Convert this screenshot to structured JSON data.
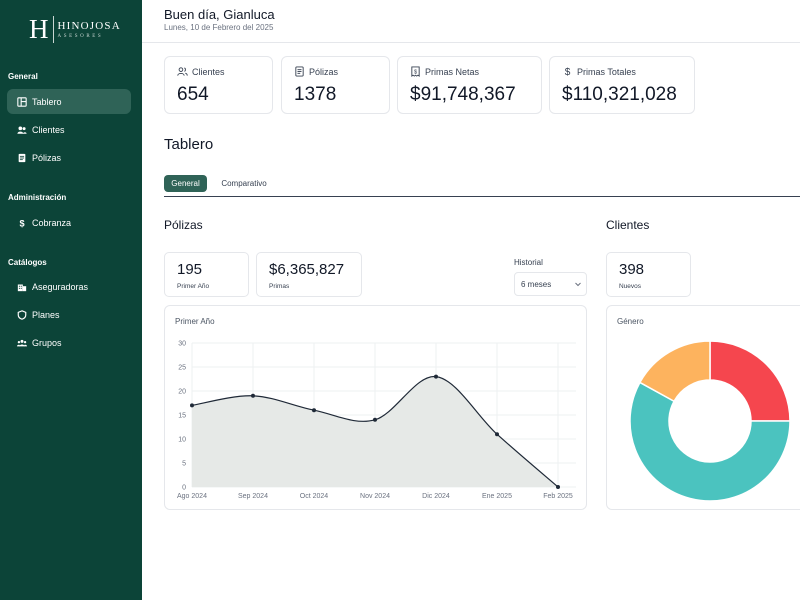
{
  "sidebar": {
    "logo_letter": "H",
    "logo_name": "HINOJOSA",
    "logo_sub": "ASESORES",
    "sections": [
      {
        "label": "General"
      },
      {
        "label": "Administración"
      },
      {
        "label": "Catálogos"
      }
    ],
    "items": [
      {
        "label": "Tablero",
        "icon": "dashboard-icon",
        "active": true
      },
      {
        "label": "Clientes",
        "icon": "users-icon",
        "active": false
      },
      {
        "label": "Pólizas",
        "icon": "document-icon",
        "active": false
      },
      {
        "label": "Cobranza",
        "icon": "dollar-icon",
        "active": false
      },
      {
        "label": "Aseguradoras",
        "icon": "building-icon",
        "active": false
      },
      {
        "label": "Planes",
        "icon": "shield-icon",
        "active": false
      },
      {
        "label": "Grupos",
        "icon": "group-icon",
        "active": false
      }
    ]
  },
  "header": {
    "greeting": "Buen día, Gianluca",
    "date": "Lunes, 10 de Febrero del 2025"
  },
  "stats": [
    {
      "label": "Clientes",
      "value": "654",
      "icon": "users-icon"
    },
    {
      "label": "Pólizas",
      "value": "1378",
      "icon": "document-icon"
    },
    {
      "label": "Primas Netas",
      "value": "$91,748,367",
      "icon": "receipt-icon"
    },
    {
      "label": "Primas Totales",
      "value": "$110,321,028",
      "icon": "dollar-icon"
    }
  ],
  "page_title": "Tablero",
  "tabs": [
    {
      "label": "General",
      "active": true
    },
    {
      "label": "Comparativo",
      "active": false
    }
  ],
  "polizas": {
    "title": "Pólizas",
    "cards": [
      {
        "value": "195",
        "label": "Primer Año"
      },
      {
        "value": "$6,365,827",
        "label": "Primas"
      }
    ],
    "history_label": "Historial",
    "history_value": "6 meses"
  },
  "clientes": {
    "title": "Clientes",
    "cards": [
      {
        "value": "398",
        "label": "Nuevos"
      }
    ]
  },
  "chart_data": [
    {
      "type": "area",
      "title": "Primer Año",
      "x": [
        "Ago 2024",
        "Sep 2024",
        "Oct 2024",
        "Nov 2024",
        "Dic 2024",
        "Ene 2025",
        "Feb 2025"
      ],
      "values": [
        17,
        19,
        16,
        14,
        23,
        11,
        0
      ],
      "yticks": [
        0,
        5,
        10,
        15,
        20,
        25,
        30
      ],
      "ylim": [
        0,
        30
      ],
      "grid": true,
      "color": "#1f2937",
      "fill": "#e6e9e7"
    },
    {
      "type": "pie",
      "title": "Género",
      "slices": [
        {
          "value": 25,
          "color": "#f5464e"
        },
        {
          "value": 58,
          "color": "#4bc3bf"
        },
        {
          "value": 17,
          "color": "#fdb35e"
        }
      ]
    }
  ]
}
